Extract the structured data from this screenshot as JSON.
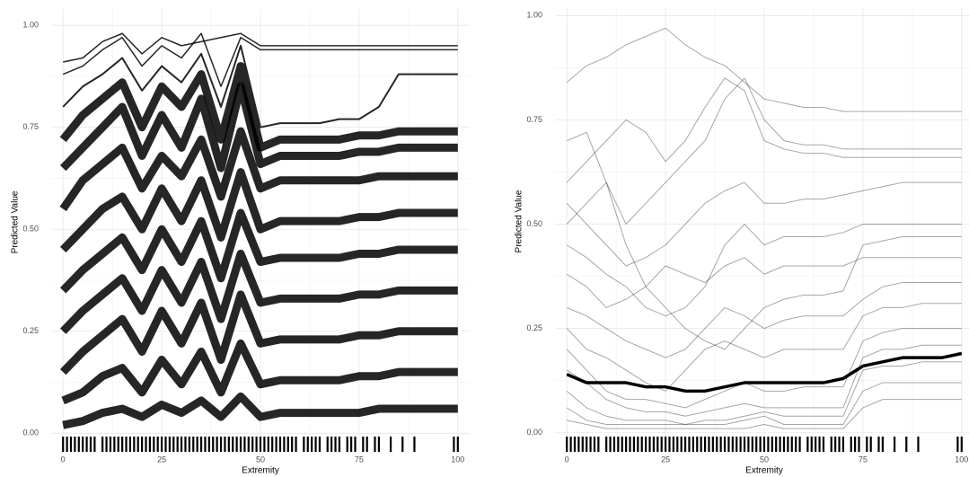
{
  "chart_data": [
    {
      "type": "line",
      "xlabel": "Extremity",
      "ylabel": "Predicted Value",
      "xlim": [
        -3,
        103
      ],
      "ylim": [
        -0.05,
        1.04
      ],
      "xticks": [
        0,
        25,
        50,
        75,
        100
      ],
      "yticks": [
        {
          "value": 0,
          "label": "0.00"
        },
        {
          "value": 0.25,
          "label": "0.25"
        },
        {
          "value": 0.5,
          "label": "0.50"
        },
        {
          "value": 0.75,
          "label": "0.75"
        },
        {
          "value": 1,
          "label": "1.00"
        }
      ],
      "grid": true,
      "line_width": 9,
      "line_alpha": 0.85,
      "x": [
        0,
        5,
        10,
        15,
        20,
        25,
        30,
        35,
        40,
        45,
        50,
        55,
        60,
        65,
        70,
        75,
        80,
        85,
        90,
        95,
        100
      ],
      "series": [
        {
          "color": "#000000",
          "line_width": 1.5,
          "values": [
            0.91,
            0.92,
            0.96,
            0.98,
            0.93,
            0.97,
            0.95,
            0.96,
            0.97,
            0.98,
            0.95,
            0.95,
            0.95,
            0.95,
            0.95,
            0.95,
            0.95,
            0.95,
            0.95,
            0.95,
            0.95
          ]
        },
        {
          "color": "#000000",
          "line_width": 1.5,
          "values": [
            0.88,
            0.9,
            0.94,
            0.97,
            0.9,
            0.95,
            0.92,
            0.98,
            0.85,
            0.97,
            0.94,
            0.94,
            0.94,
            0.94,
            0.94,
            0.94,
            0.94,
            0.94,
            0.94,
            0.94,
            0.94
          ]
        },
        {
          "color": "#000000",
          "line_width": 2,
          "values": [
            0.8,
            0.85,
            0.88,
            0.92,
            0.84,
            0.9,
            0.86,
            0.93,
            0.8,
            0.95,
            0.75,
            0.76,
            0.76,
            0.76,
            0.77,
            0.77,
            0.8,
            0.88,
            0.88,
            0.88,
            0.88
          ]
        },
        {
          "color": "#000000",
          "values": [
            0.72,
            0.78,
            0.82,
            0.86,
            0.75,
            0.85,
            0.8,
            0.88,
            0.72,
            0.9,
            0.7,
            0.72,
            0.72,
            0.72,
            0.72,
            0.73,
            0.73,
            0.74,
            0.74,
            0.74,
            0.74
          ]
        },
        {
          "color": "#000000",
          "values": [
            0.65,
            0.7,
            0.75,
            0.8,
            0.68,
            0.78,
            0.7,
            0.82,
            0.65,
            0.85,
            0.66,
            0.68,
            0.68,
            0.68,
            0.68,
            0.69,
            0.69,
            0.7,
            0.7,
            0.7,
            0.7
          ]
        },
        {
          "color": "#000000",
          "values": [
            0.55,
            0.62,
            0.66,
            0.7,
            0.6,
            0.68,
            0.63,
            0.72,
            0.58,
            0.74,
            0.6,
            0.62,
            0.62,
            0.62,
            0.62,
            0.62,
            0.63,
            0.63,
            0.63,
            0.63,
            0.63
          ]
        },
        {
          "color": "#000000",
          "values": [
            0.45,
            0.5,
            0.55,
            0.58,
            0.5,
            0.6,
            0.52,
            0.62,
            0.48,
            0.64,
            0.5,
            0.52,
            0.52,
            0.52,
            0.52,
            0.53,
            0.53,
            0.54,
            0.54,
            0.54,
            0.54
          ]
        },
        {
          "color": "#000000",
          "values": [
            0.35,
            0.4,
            0.44,
            0.48,
            0.4,
            0.5,
            0.42,
            0.52,
            0.38,
            0.54,
            0.42,
            0.43,
            0.43,
            0.43,
            0.43,
            0.44,
            0.44,
            0.45,
            0.45,
            0.45,
            0.45
          ]
        },
        {
          "color": "#000000",
          "values": [
            0.25,
            0.3,
            0.34,
            0.38,
            0.3,
            0.4,
            0.32,
            0.42,
            0.28,
            0.44,
            0.32,
            0.33,
            0.33,
            0.33,
            0.33,
            0.34,
            0.34,
            0.35,
            0.35,
            0.35,
            0.35
          ]
        },
        {
          "color": "#000000",
          "values": [
            0.15,
            0.2,
            0.24,
            0.28,
            0.2,
            0.3,
            0.22,
            0.32,
            0.18,
            0.34,
            0.22,
            0.23,
            0.23,
            0.23,
            0.23,
            0.24,
            0.24,
            0.25,
            0.25,
            0.25,
            0.25
          ]
        },
        {
          "color": "#000000",
          "values": [
            0.08,
            0.1,
            0.14,
            0.16,
            0.1,
            0.18,
            0.12,
            0.2,
            0.1,
            0.22,
            0.12,
            0.13,
            0.13,
            0.13,
            0.13,
            0.14,
            0.14,
            0.15,
            0.15,
            0.15,
            0.15
          ]
        },
        {
          "color": "#000000",
          "values": [
            0.02,
            0.03,
            0.05,
            0.06,
            0.04,
            0.07,
            0.05,
            0.08,
            0.04,
            0.09,
            0.04,
            0.05,
            0.05,
            0.05,
            0.05,
            0.05,
            0.06,
            0.06,
            0.06,
            0.06,
            0.06
          ]
        }
      ],
      "rug": [
        0,
        1,
        2,
        3,
        4,
        5,
        6,
        7,
        8,
        10,
        11,
        12,
        13,
        14,
        15,
        16,
        17,
        18,
        19,
        20,
        21,
        22,
        23,
        24,
        25,
        26,
        27,
        28,
        29,
        30,
        31,
        32,
        33,
        34,
        35,
        36,
        37,
        38,
        39,
        40,
        41,
        42,
        43,
        44,
        45,
        46,
        47,
        48,
        49,
        50,
        51,
        52,
        53,
        54,
        55,
        56,
        57,
        58,
        59,
        61,
        62,
        63,
        64,
        65,
        67,
        68,
        69,
        70,
        72,
        73,
        74,
        76,
        77,
        79,
        80,
        83,
        86,
        89,
        99,
        100
      ]
    },
    {
      "type": "line",
      "xlabel": "Extremity",
      "ylabel": "Predicted Value",
      "xlim": [
        -3,
        103
      ],
      "ylim": [
        -0.05,
        1.02
      ],
      "xticks": [
        0,
        25,
        50,
        75,
        100
      ],
      "yticks": [
        {
          "value": 0,
          "label": "0.00"
        },
        {
          "value": 0.25,
          "label": "0.25"
        },
        {
          "value": 0.5,
          "label": "0.50"
        },
        {
          "value": 0.75,
          "label": "0.75"
        },
        {
          "value": 1,
          "label": "1.00"
        }
      ],
      "grid": true,
      "line_width": 1,
      "line_alpha": 0.35,
      "x": [
        0,
        5,
        10,
        15,
        20,
        25,
        30,
        35,
        40,
        45,
        50,
        55,
        60,
        65,
        70,
        75,
        80,
        85,
        90,
        95,
        100
      ],
      "series": [
        {
          "color": "#000000",
          "values": [
            0.84,
            0.88,
            0.9,
            0.93,
            0.95,
            0.97,
            0.93,
            0.9,
            0.88,
            0.84,
            0.8,
            0.79,
            0.78,
            0.78,
            0.77,
            0.77,
            0.77,
            0.77,
            0.77,
            0.77,
            0.77
          ]
        },
        {
          "color": "#000000",
          "values": [
            0.6,
            0.65,
            0.7,
            0.75,
            0.72,
            0.65,
            0.7,
            0.78,
            0.85,
            0.82,
            0.7,
            0.68,
            0.67,
            0.67,
            0.66,
            0.66,
            0.66,
            0.66,
            0.66,
            0.66,
            0.66
          ]
        },
        {
          "color": "#000000",
          "values": [
            0.55,
            0.5,
            0.45,
            0.4,
            0.42,
            0.45,
            0.5,
            0.55,
            0.58,
            0.6,
            0.55,
            0.55,
            0.56,
            0.56,
            0.57,
            0.58,
            0.59,
            0.6,
            0.6,
            0.6,
            0.6
          ]
        },
        {
          "color": "#000000",
          "values": [
            0.45,
            0.42,
            0.38,
            0.35,
            0.3,
            0.28,
            0.3,
            0.35,
            0.45,
            0.5,
            0.45,
            0.47,
            0.47,
            0.47,
            0.48,
            0.5,
            0.5,
            0.5,
            0.5,
            0.5,
            0.5
          ]
        },
        {
          "color": "#000000",
          "values": [
            0.38,
            0.35,
            0.3,
            0.32,
            0.35,
            0.4,
            0.38,
            0.36,
            0.4,
            0.42,
            0.38,
            0.4,
            0.4,
            0.4,
            0.4,
            0.42,
            0.42,
            0.42,
            0.42,
            0.42,
            0.42
          ]
        },
        {
          "color": "#000000",
          "values": [
            0.3,
            0.28,
            0.25,
            0.22,
            0.2,
            0.18,
            0.2,
            0.25,
            0.3,
            0.28,
            0.25,
            0.27,
            0.28,
            0.28,
            0.28,
            0.32,
            0.35,
            0.36,
            0.36,
            0.36,
            0.36
          ]
        },
        {
          "color": "#000000",
          "values": [
            0.25,
            0.2,
            0.18,
            0.15,
            0.12,
            0.1,
            0.15,
            0.2,
            0.22,
            0.2,
            0.18,
            0.2,
            0.2,
            0.2,
            0.2,
            0.28,
            0.3,
            0.3,
            0.31,
            0.31,
            0.31
          ]
        },
        {
          "color": "#000000",
          "values": [
            0.2,
            0.15,
            0.1,
            0.08,
            0.08,
            0.07,
            0.06,
            0.08,
            0.1,
            0.12,
            0.1,
            0.1,
            0.11,
            0.11,
            0.11,
            0.22,
            0.24,
            0.25,
            0.25,
            0.25,
            0.25
          ]
        },
        {
          "color": "#000000",
          "values": [
            0.15,
            0.12,
            0.08,
            0.06,
            0.05,
            0.05,
            0.04,
            0.05,
            0.06,
            0.07,
            0.06,
            0.06,
            0.06,
            0.06,
            0.06,
            0.18,
            0.2,
            0.2,
            0.21,
            0.21,
            0.21
          ]
        },
        {
          "color": "#000000",
          "values": [
            0.1,
            0.06,
            0.04,
            0.03,
            0.03,
            0.03,
            0.02,
            0.03,
            0.03,
            0.04,
            0.05,
            0.04,
            0.04,
            0.04,
            0.04,
            0.15,
            0.16,
            0.16,
            0.17,
            0.17,
            0.17
          ]
        },
        {
          "color": "#000000",
          "values": [
            0.06,
            0.03,
            0.02,
            0.02,
            0.02,
            0.02,
            0.02,
            0.02,
            0.02,
            0.03,
            0.04,
            0.02,
            0.02,
            0.02,
            0.02,
            0.1,
            0.12,
            0.12,
            0.12,
            0.12,
            0.12
          ]
        },
        {
          "color": "#000000",
          "values": [
            0.03,
            0.02,
            0.01,
            0.01,
            0.01,
            0.01,
            0.01,
            0.01,
            0.01,
            0.01,
            0.02,
            0.01,
            0.01,
            0.01,
            0.01,
            0.06,
            0.08,
            0.08,
            0.08,
            0.08,
            0.08
          ]
        },
        {
          "color": "#000000",
          "values": [
            0.7,
            0.72,
            0.6,
            0.5,
            0.55,
            0.6,
            0.65,
            0.7,
            0.8,
            0.85,
            0.75,
            0.7,
            0.69,
            0.69,
            0.68,
            0.68,
            0.68,
            0.68,
            0.68,
            0.68,
            0.68
          ]
        },
        {
          "color": "#000000",
          "values": [
            0.5,
            0.55,
            0.6,
            0.45,
            0.35,
            0.3,
            0.25,
            0.22,
            0.2,
            0.25,
            0.3,
            0.32,
            0.33,
            0.33,
            0.34,
            0.45,
            0.46,
            0.47,
            0.47,
            0.47,
            0.47
          ]
        },
        {
          "color": "#000000",
          "line_width": 3.5,
          "line_alpha": 1,
          "values": [
            0.14,
            0.12,
            0.12,
            0.12,
            0.11,
            0.11,
            0.1,
            0.1,
            0.11,
            0.12,
            0.12,
            0.12,
            0.12,
            0.12,
            0.13,
            0.16,
            0.17,
            0.18,
            0.18,
            0.18,
            0.19
          ]
        }
      ],
      "rug": [
        0,
        1,
        2,
        3,
        4,
        5,
        6,
        7,
        8,
        10,
        11,
        12,
        13,
        14,
        15,
        16,
        17,
        18,
        19,
        20,
        21,
        22,
        23,
        24,
        25,
        26,
        27,
        28,
        29,
        30,
        31,
        32,
        33,
        34,
        35,
        36,
        37,
        38,
        39,
        40,
        41,
        42,
        43,
        44,
        45,
        46,
        47,
        48,
        49,
        50,
        51,
        52,
        53,
        54,
        55,
        56,
        57,
        58,
        59,
        61,
        62,
        63,
        64,
        65,
        67,
        68,
        69,
        70,
        72,
        73,
        74,
        76,
        77,
        79,
        80,
        83,
        86,
        89,
        99,
        100
      ]
    }
  ]
}
